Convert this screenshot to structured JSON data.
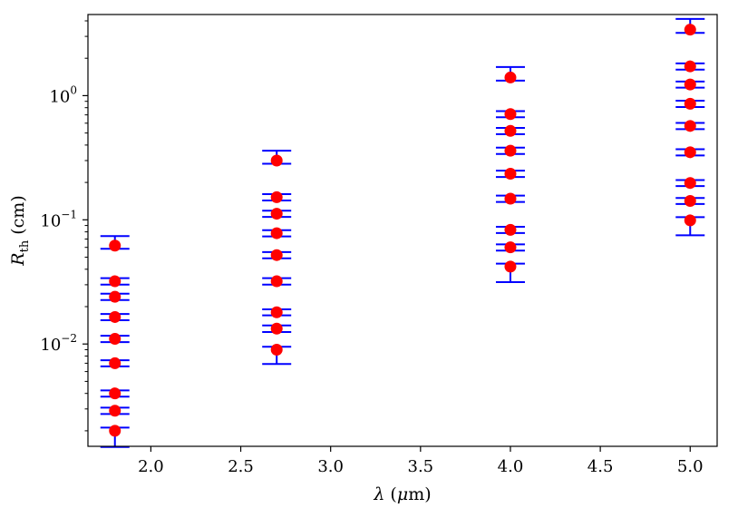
{
  "chart_data": {
    "type": "scatter",
    "title": "",
    "xlabel": "λ (μm)",
    "xlabel_parts": {
      "symbol": "λ",
      "open": " (",
      "unit_prefix": "μ",
      "unit_rest": "m)"
    },
    "ylabel": "R_th (cm)",
    "ylabel_parts": {
      "symbol": "R",
      "sub": "th",
      "unit": " (cm)"
    },
    "xlim": [
      1.65,
      5.15
    ],
    "ylim": [
      0.0015,
      4.5
    ],
    "yscale": "log",
    "grid": false,
    "x_ticks": [
      {
        "value": 2.0,
        "label": "2.0"
      },
      {
        "value": 2.5,
        "label": "2.5"
      },
      {
        "value": 3.0,
        "label": "3.0"
      },
      {
        "value": 3.5,
        "label": "3.5"
      },
      {
        "value": 4.0,
        "label": "4.0"
      },
      {
        "value": 4.5,
        "label": "4.5"
      },
      {
        "value": 5.0,
        "label": "5.0"
      }
    ],
    "y_ticks": [
      {
        "value": 0.01,
        "base": "10",
        "exp": "−2"
      },
      {
        "value": 0.1,
        "base": "10",
        "exp": "−1"
      },
      {
        "value": 1,
        "base": "10",
        "exp": "0"
      }
    ],
    "marker_color": "#ff0000",
    "errorbar_color": "#0000ff",
    "series": [
      {
        "x": 1.8,
        "y": [
          0.062,
          0.032,
          0.024,
          0.0165,
          0.011,
          0.007,
          0.004,
          0.0029,
          0.002
        ],
        "yerr_low": [
          0.0036,
          0.0019,
          0.0014,
          0.00095,
          0.00064,
          0.0004,
          0.00023,
          0.00017,
          0.00052
        ],
        "yerr_high": [
          0.012,
          0.0019,
          0.0014,
          0.00095,
          0.00064,
          0.0004,
          0.00023,
          0.00017,
          0.00012
        ]
      },
      {
        "x": 2.7,
        "y": [
          0.3,
          0.152,
          0.112,
          0.078,
          0.052,
          0.032,
          0.018,
          0.0133,
          0.009
        ],
        "yerr_low": [
          0.017,
          0.009,
          0.0065,
          0.0045,
          0.003,
          0.0019,
          0.001,
          0.0008,
          0.0021
        ],
        "yerr_high": [
          0.06,
          0.009,
          0.0065,
          0.0045,
          0.003,
          0.0019,
          0.001,
          0.0008,
          0.0005
        ]
      },
      {
        "x": 4.0,
        "y": [
          1.4,
          0.71,
          0.52,
          0.36,
          0.235,
          0.148,
          0.083,
          0.06,
          0.042
        ],
        "yerr_low": [
          0.08,
          0.04,
          0.03,
          0.021,
          0.014,
          0.0086,
          0.0048,
          0.0035,
          0.0105
        ],
        "yerr_high": [
          0.3,
          0.04,
          0.03,
          0.021,
          0.014,
          0.0086,
          0.0048,
          0.0035,
          0.0024
        ]
      },
      {
        "x": 5.0,
        "y": [
          3.4,
          1.72,
          1.23,
          0.86,
          0.57,
          0.35,
          0.198,
          0.142,
          0.099
        ],
        "yerr_low": [
          0.2,
          0.1,
          0.07,
          0.05,
          0.033,
          0.02,
          0.011,
          0.008,
          0.024
        ],
        "yerr_high": [
          0.75,
          0.1,
          0.07,
          0.05,
          0.033,
          0.02,
          0.011,
          0.008,
          0.006
        ]
      }
    ]
  }
}
